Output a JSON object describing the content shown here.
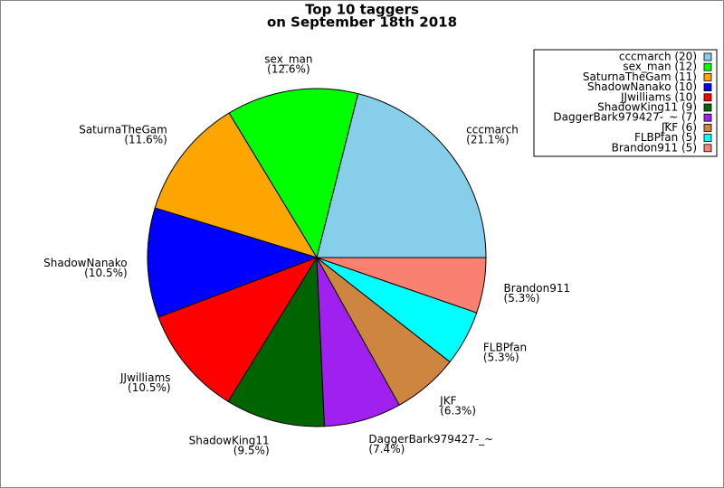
{
  "chart_data": {
    "type": "pie",
    "title": "Top 10 taggers",
    "subtitle": "on September 18th 2018",
    "categories": [
      "cccmarch",
      "sex_man",
      "SaturnaTheGam",
      "ShadowNanako",
      "JJwilliams",
      "ShadowKing11",
      "DaggerBark979427-_~",
      "JKF",
      "FLBPfan",
      "Brandon911"
    ],
    "values": [
      21.1,
      12.6,
      11.6,
      10.5,
      10.5,
      9.5,
      7.4,
      6.3,
      5.3,
      5.3
    ],
    "value_labels": [
      "(21.1%)",
      "(12.6%)",
      "(11.6%)",
      "(10.5%)",
      "(10.5%)",
      "(9.5%)",
      "(7.4%)",
      "(6.3%)",
      "(5.3%)",
      "(5.3%)"
    ],
    "colors": [
      "#87ceeb",
      "#00ff00",
      "#ffa500",
      "#0000ff",
      "#ff0000",
      "#006400",
      "#a020f0",
      "#cd853f",
      "#00ffff",
      "#fa8072"
    ],
    "legend_labels": [
      "cccmarch (20)",
      "sex_man (12)",
      "SaturnaTheGam (11)",
      "ShadowNanako (10)",
      "JJwilliams (10)",
      "ShadowKing11 (9)",
      "DaggerBark979427-_~ (7)",
      "JKF (6)",
      "FLBPfan (5)",
      "Brandon911 (5)"
    ],
    "legend_position": "upper right"
  }
}
